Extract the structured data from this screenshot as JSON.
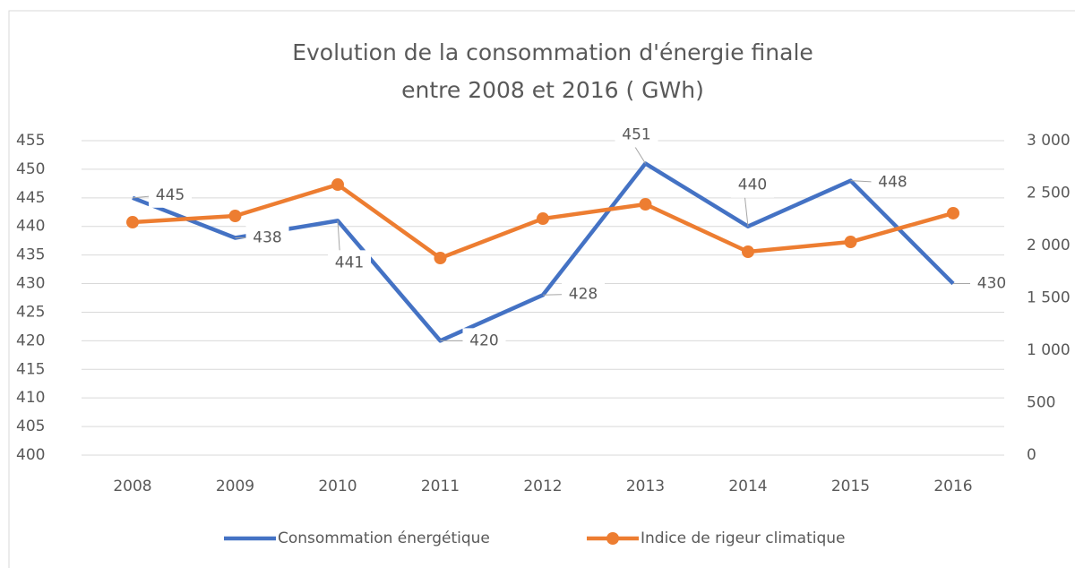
{
  "chart_data": {
    "type": "line",
    "title": [
      "Evolution de la consommation d'énergie finale",
      "entre 2008 et 2016 ( GWh)"
    ],
    "categories": [
      "2008",
      "2009",
      "2010",
      "2011",
      "2012",
      "2013",
      "2014",
      "2015",
      "2016"
    ],
    "series": [
      {
        "name": "Consommation énergétique",
        "color": "#4472c4",
        "values": [
          445,
          438,
          441,
          420,
          428,
          451,
          440,
          448,
          430
        ],
        "data_labels": true
      },
      {
        "name": "Indice de rigeur climatique",
        "color": "#ed7d31",
        "axis": "y2",
        "markers": true,
        "values": [
          2222,
          2282,
          2581,
          1880,
          2256,
          2393,
          1940,
          2034,
          2308
        ]
      }
    ],
    "ylim": [
      400,
      455
    ],
    "yticks": [
      400,
      405,
      410,
      415,
      420,
      425,
      430,
      435,
      440,
      445,
      450,
      455
    ],
    "y2lim": [
      0,
      3000
    ],
    "y2ticks": [
      0,
      500,
      {
        "value": 1000,
        "label": "1 000"
      },
      {
        "value": 1500,
        "label": "1 500"
      },
      {
        "value": 2000,
        "label": "2 000"
      },
      {
        "value": 2500,
        "label": "2 500"
      },
      {
        "value": 3000,
        "label": "3 000"
      }
    ],
    "grid": true,
    "legend": "bottom"
  }
}
